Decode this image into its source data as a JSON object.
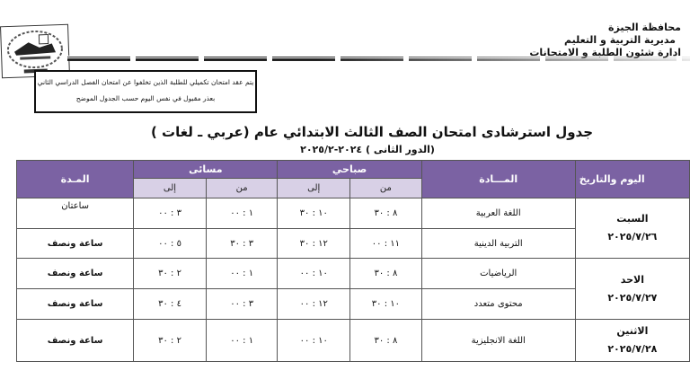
{
  "header": {
    "governorate": "محافظة الجيزة",
    "directorate": "مديرية التربية و التعليم",
    "department": "ادارة شئون الطلبة و الامتحانات"
  },
  "notice": {
    "line1": "يتم عقد امتحان تكميلي للطلبة الذين تخلفوا عن امتحان الفصل الدراسي الثاني",
    "line2": "بعذر مقبول في نفس اليوم حسب الجدول الموضح"
  },
  "title": "جدول استرشادى امتحان الصف الثالث الابتدائي عام (عربي ـ لغات )",
  "subtitle": "(الدور الثانى ) ٢٠٢٤-٢٠٢٥/٢",
  "table": {
    "headers": {
      "day_date": "اليوم والتاريخ",
      "subject": "المـــادة",
      "morning": "صباحي",
      "evening": "مسائى",
      "duration": "المـدة",
      "from": "من",
      "to": "إلى"
    },
    "days": [
      {
        "day": "السبت",
        "date": "٢٠٢٥/٧/٢٦"
      },
      {
        "day": "الاحد",
        "date": "٢٠٢٥/٧/٢٧"
      },
      {
        "day": "الاثنين",
        "date": "٢٠٢٥/٧/٢٨"
      }
    ],
    "rows": [
      {
        "subject": "اللغة العربية",
        "m_from": "٨ : ٣٠",
        "m_to": "١٠ : ٣٠",
        "e_from": "١ : ٠٠",
        "e_to": "٣ : ٠٠",
        "duration": "ساعتان"
      },
      {
        "subject": "التربية الدينية",
        "m_from": "١١ : ٠٠",
        "m_to": "١٢ : ٣٠",
        "e_from": "٣ : ٣٠",
        "e_to": "٥ : ٠٠",
        "duration": "ساعة ونصف"
      },
      {
        "subject": "الرياضيات",
        "m_from": "٨ : ٣٠",
        "m_to": "١٠ : ٠٠",
        "e_from": "١ : ٠٠",
        "e_to": "٢ : ٣٠",
        "duration": "ساعة ونصف"
      },
      {
        "subject": "محتوى متعدد",
        "m_from": "١٠ : ٣٠",
        "m_to": "١٢ : ٠٠",
        "e_from": "٣ : ٠٠",
        "e_to": "٤ : ٣٠",
        "duration": "ساعة ونصف"
      },
      {
        "subject": "اللغة الانجليزية",
        "m_from": "٨ : ٣٠",
        "m_to": "١٠ : ٠٠",
        "e_from": "١ : ٠٠",
        "e_to": "٢ : ٣٠",
        "duration": "ساعة ونصف"
      }
    ]
  },
  "colors": {
    "header_bg": "#7b62a3",
    "subheader_bg": "#d8d0e6"
  }
}
